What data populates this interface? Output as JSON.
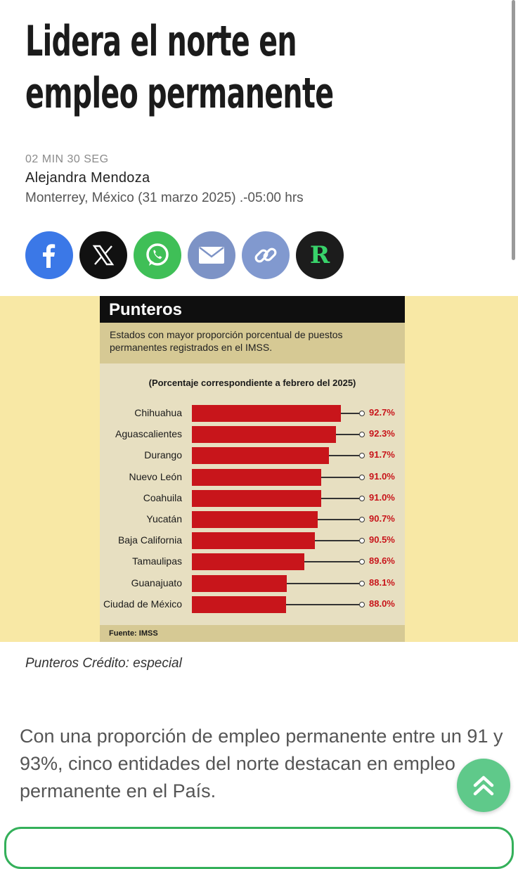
{
  "article": {
    "headline_line1": "Lidera el norte en",
    "headline_line2": "empleo permanente",
    "read_time": "02 MIN 30 SEG",
    "author": "Alejandra Mendoza",
    "dateline": "Monterrey, México (31 marzo 2025) .-05:00 hrs",
    "caption": "Punteros Crédito: especial",
    "body_text": "Con una proporción de empleo permanente entre un 91 y 93%, cinco entidades del norte destacan en empleo permanente en el País."
  },
  "share": {
    "icons": [
      "facebook-icon",
      "x-icon",
      "whatsapp-icon",
      "mail-icon",
      "link-icon",
      "r-logo-icon"
    ],
    "r_letter": "R",
    "colors": {
      "facebook": "#3b78e7",
      "x": "#111111",
      "whatsapp": "#3fbf57",
      "mail": "#7d93c6",
      "link": "#8199cf",
      "r": "#1c1c1c"
    }
  },
  "infographic": {
    "title": "Punteros",
    "subtitle": "Estados con mayor proporción porcentual de puestos permanentes registrados en el IMSS.",
    "note": "(Porcentaje correspondiente a febrero del 2025)",
    "source": "Fuente: IMSS",
    "bar_color": "#c8151b"
  },
  "chart_data": {
    "type": "bar",
    "orientation": "horizontal",
    "title": "Punteros",
    "subtitle": "Estados con mayor proporción porcentual de puestos permanentes registrados en el IMSS.",
    "note": "(Porcentaje correspondiente a febrero del 2025)",
    "categories": [
      "Chihuahua",
      "Aguascalientes",
      "Durango",
      "Nuevo León",
      "Coahuila",
      "Yucatán",
      "Baja California",
      "Tamaulipas",
      "Guanajuato",
      "Ciudad de México"
    ],
    "values": [
      92.7,
      92.3,
      91.7,
      91.0,
      91.0,
      90.7,
      90.5,
      89.6,
      88.1,
      88.0
    ],
    "value_labels": [
      "92.7%",
      "92.3%",
      "91.7%",
      "91.0%",
      "91.0%",
      "90.7%",
      "90.5%",
      "89.6%",
      "88.1%",
      "88.0%"
    ],
    "source": "Fuente: IMSS"
  },
  "controls": {
    "scroll_top_icon": "double-chevron-up-icon"
  }
}
